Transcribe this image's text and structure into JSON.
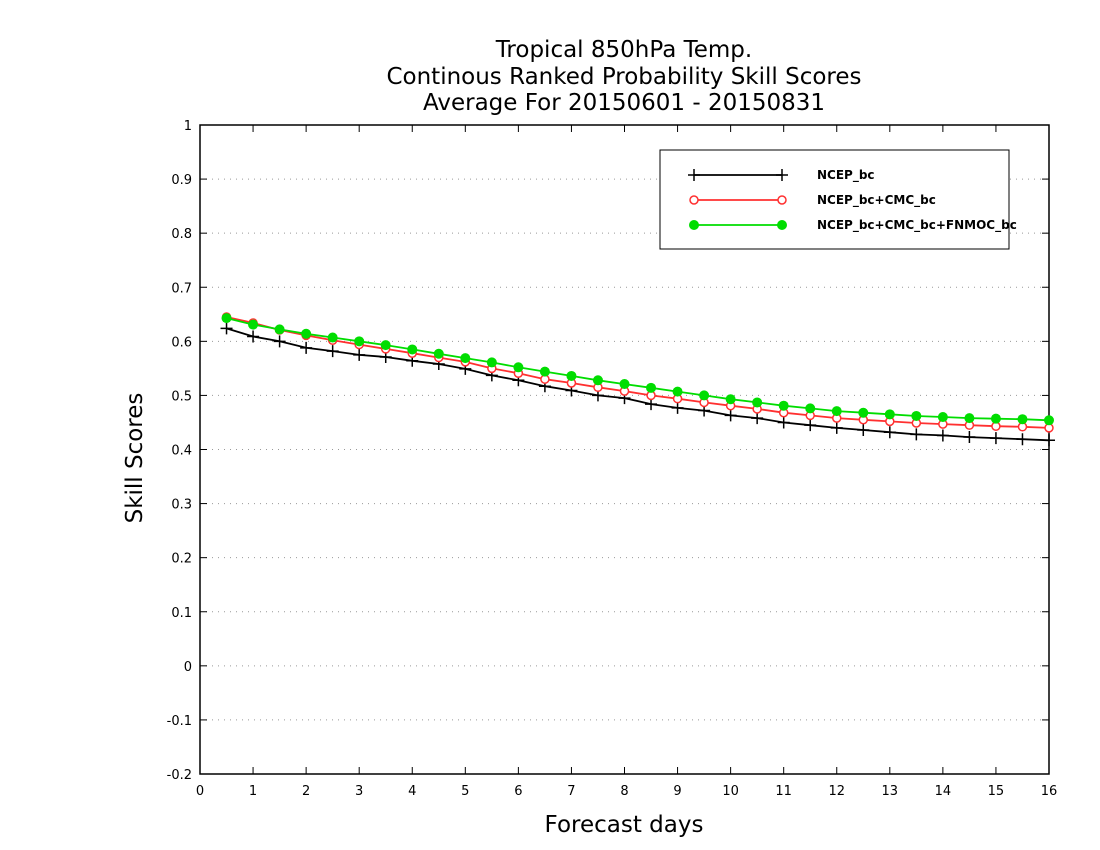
{
  "chart_data": {
    "type": "line",
    "title": "Tropical 850hPa Temp.",
    "subtitle": "Continous Ranked Probability Skill Scores",
    "period": "Average For 20150601 - 20150831",
    "xlabel": "Forecast days",
    "ylabel": "Skill Scores",
    "xlim": [
      0,
      16
    ],
    "ylim": [
      -0.2,
      1
    ],
    "xticks": [
      "0",
      "1",
      "2",
      "3",
      "4",
      "5",
      "6",
      "7",
      "8",
      "9",
      "10",
      "11",
      "12",
      "13",
      "14",
      "15",
      "16"
    ],
    "yticks": [
      "-0.2",
      "-0.1",
      "0",
      "0.1",
      "0.2",
      "0.3",
      "0.4",
      "0.5",
      "0.6",
      "0.7",
      "0.8",
      "0.9",
      "1"
    ],
    "grid": "horizontal dotted",
    "legend_position": "top-right",
    "x": [
      0.5,
      1,
      1.5,
      2,
      2.5,
      3,
      3.5,
      4,
      4.5,
      5,
      5.5,
      6,
      6.5,
      7,
      7.5,
      8,
      8.5,
      9,
      9.5,
      10,
      10.5,
      11,
      11.5,
      12,
      12.5,
      13,
      13.5,
      14,
      14.5,
      15,
      15.5,
      16
    ],
    "series": [
      {
        "name": "NCEP_bc",
        "color": "#000000",
        "marker": "plus",
        "values": [
          0.624,
          0.609,
          0.6,
          0.588,
          0.582,
          0.575,
          0.571,
          0.564,
          0.558,
          0.549,
          0.537,
          0.528,
          0.517,
          0.509,
          0.5,
          0.495,
          0.484,
          0.477,
          0.472,
          0.463,
          0.458,
          0.45,
          0.445,
          0.44,
          0.436,
          0.432,
          0.428,
          0.426,
          0.423,
          0.421,
          0.419,
          0.417
        ]
      },
      {
        "name": "NCEP_bc+CMC_bc",
        "color": "#ff3030",
        "marker": "open-circle",
        "values": [
          0.645,
          0.634,
          0.621,
          0.611,
          0.602,
          0.594,
          0.586,
          0.578,
          0.57,
          0.562,
          0.55,
          0.541,
          0.53,
          0.523,
          0.515,
          0.508,
          0.5,
          0.494,
          0.487,
          0.481,
          0.475,
          0.468,
          0.463,
          0.458,
          0.455,
          0.452,
          0.449,
          0.447,
          0.445,
          0.443,
          0.442,
          0.44
        ]
      },
      {
        "name": "NCEP_bc+CMC_bc+FNMOC_bc",
        "color": "#00dd00",
        "marker": "filled-circle",
        "values": [
          0.643,
          0.631,
          0.622,
          0.614,
          0.607,
          0.6,
          0.593,
          0.585,
          0.577,
          0.569,
          0.561,
          0.552,
          0.544,
          0.536,
          0.528,
          0.521,
          0.514,
          0.507,
          0.5,
          0.493,
          0.487,
          0.481,
          0.476,
          0.471,
          0.468,
          0.465,
          0.462,
          0.46,
          0.458,
          0.457,
          0.456,
          0.454
        ]
      }
    ]
  }
}
